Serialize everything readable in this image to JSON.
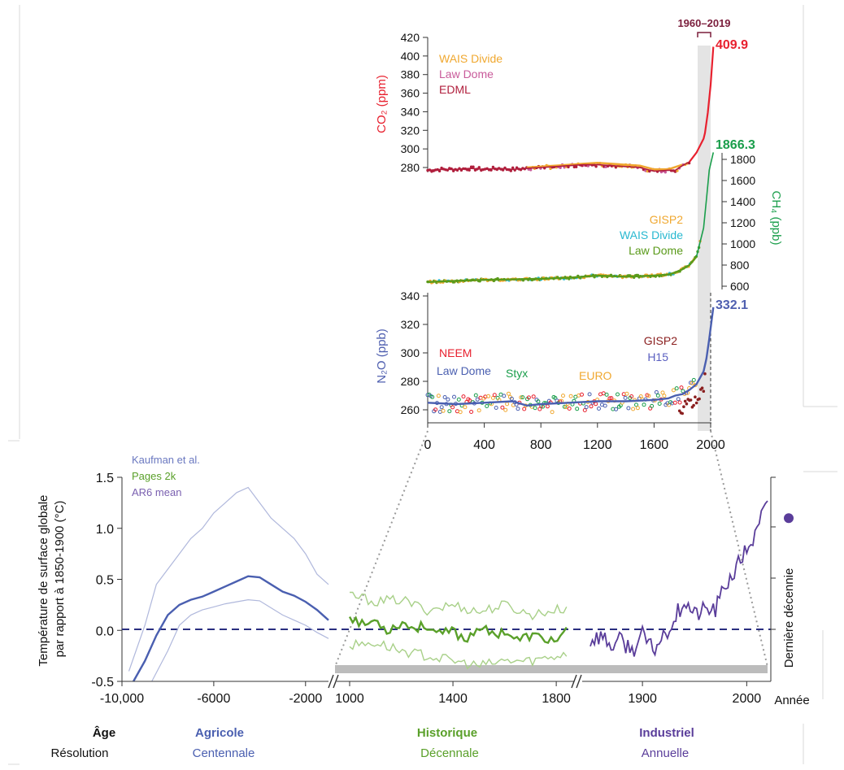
{
  "chart_data": [
    {
      "type": "line",
      "panel": "gas-concentrations",
      "bracket_label": "1960–2019",
      "x_ticks": [
        "0",
        "400",
        "800",
        "1200",
        "1600",
        "2000"
      ],
      "xlim": [
        0,
        2019
      ],
      "co2": {
        "ylabel": "CO₂ (ppm)",
        "ylim": [
          270,
          420
        ],
        "ticks": [
          "280",
          "300",
          "320",
          "340",
          "360",
          "380",
          "400",
          "420"
        ],
        "final_value_label": "409.9",
        "final_value": 409.9,
        "legend": [
          "WAIS Divide",
          "Law Dome",
          "EDML"
        ],
        "colors": {
          "accent": "#e8212f",
          "wais": "#f0a830",
          "lawdome": "#c85a9a",
          "edml": "#b01e3c"
        },
        "series": [
          {
            "name": "EDML",
            "x": [
              0,
              100,
              200,
              300,
              400,
              500,
              600,
              700,
              800,
              900,
              1000,
              1100,
              1200,
              1300,
              1400,
              1500,
              1600,
              1700,
              1750,
              1800,
              1850,
              1900,
              1950,
              1960,
              1980,
              2000,
              2019
            ],
            "y": [
              277,
              278,
              278,
              279,
              278,
              279,
              278,
              279,
              280,
              281,
              282,
              283,
              283,
              282,
              281,
              280,
              276,
              277,
              277,
              282,
              286,
              296,
              311,
              317,
              339,
              369,
              409.9
            ]
          },
          {
            "name": "WAIS Divide",
            "x": [
              700,
              800,
              900,
              1000,
              1100,
              1200,
              1300,
              1400,
              1500,
              1600,
              1700,
              1800
            ],
            "y": [
              280,
              281,
              282,
              283,
              284,
              285,
              284,
              283,
              282,
              278,
              278,
              283
            ]
          }
        ]
      },
      "ch4": {
        "ylabel": "CH₄ (ppb)",
        "ylim": [
          600,
          1900
        ],
        "ticks": [
          "600",
          "800",
          "1000",
          "1200",
          "1400",
          "1600",
          "1800"
        ],
        "final_value_label": "1866.3",
        "final_value": 1866.3,
        "legend": [
          "GISP2",
          "WAIS Divide",
          "Law Dome"
        ],
        "colors": {
          "accent": "#1a9e4b",
          "gisp2": "#f0a830",
          "wais": "#28b8d0",
          "lawdome": "#5a9a1a"
        },
        "series": [
          {
            "name": "Law Dome",
            "x": [
              0,
              200,
              400,
              600,
              800,
              1000,
              1200,
              1400,
              1600,
              1700,
              1750,
              1800,
              1850,
              1900,
              1950,
              1970,
              1990,
              2019
            ],
            "y": [
              640,
              650,
              660,
              665,
              670,
              680,
              700,
              690,
              700,
              710,
              730,
              760,
              800,
              880,
              1150,
              1420,
              1700,
              1866.3
            ]
          }
        ]
      },
      "n2o": {
        "ylabel": "N₂O (ppb)",
        "ylim": [
          255,
          340
        ],
        "ticks": [
          "260",
          "280",
          "300",
          "320",
          "340"
        ],
        "final_value_label": "332.1",
        "final_value": 332.1,
        "legend": [
          "NEEM",
          "Law Dome",
          "Styx",
          "EURO",
          "GISP2",
          "H15"
        ],
        "colors": {
          "accent": "#5060b0",
          "neem": "#e8212f",
          "lawdome": "#4a5fb0",
          "styx": "#1a9e4b",
          "euro": "#f0a830",
          "gisp2": "#8b2020",
          "h15": "#5a5fc0"
        },
        "series": [
          {
            "name": "Law Dome",
            "x": [
              0,
              200,
              400,
              600,
              700,
              800,
              1000,
              1200,
              1400,
              1600,
              1700,
              1750,
              1800,
              1850,
              1900,
              1950,
              1970,
              1990,
              2019
            ],
            "y": [
              265,
              264,
              265,
              266,
              263,
              264,
              265,
              266,
              266,
              267,
              268,
              270,
              271,
              274,
              278,
              287,
              296,
              310,
              332.1
            ]
          }
        ]
      }
    },
    {
      "type": "line",
      "panel": "global-temperature",
      "ylabel": "Température de surface globale par rapport à 1850-1900 (°C)",
      "ylim": [
        -0.5,
        1.5
      ],
      "y_ticks": [
        "-0.5",
        "0.0",
        "0.5",
        "1.0",
        "1.5"
      ],
      "legend": [
        "Kaufman et al.",
        "Pages 2k",
        "AR6 mean"
      ],
      "xlabel": "Année",
      "colors": {
        "agricole": "#4a5fb0",
        "agricole_light": "#b0b8dc",
        "historique": "#5aa02a",
        "historique_light": "#a8d088",
        "industriel": "#5a3d9a",
        "zero_line": "#2a2f80",
        "gray_bar": "#bcbcbc"
      },
      "segments": [
        {
          "name": "Agricole",
          "x_ticks": [
            "-10,000",
            "-6000",
            "-2000"
          ],
          "xlim": [
            -10000,
            -1000
          ],
          "series": [
            {
              "name": "Kaufman et al.",
              "x": [
                -9500,
                -9000,
                -8500,
                -8000,
                -7500,
                -7000,
                -6500,
                -6000,
                -5500,
                -5000,
                -4500,
                -4000,
                -3500,
                -3000,
                -2500,
                -2000,
                -1500,
                -1200,
                -1000
              ],
              "y": [
                -0.55,
                -0.3,
                -0.05,
                0.15,
                0.25,
                0.3,
                0.33,
                0.38,
                0.43,
                0.48,
                0.53,
                0.52,
                0.45,
                0.38,
                0.34,
                0.28,
                0.2,
                0.14,
                0.1
              ]
            },
            {
              "name": "Kaufman et al. (upper)",
              "x": [
                -9700,
                -9000,
                -8500,
                -8000,
                -7500,
                -7000,
                -6500,
                -6000,
                -5500,
                -5000,
                -4500,
                -4000,
                -3500,
                -3000,
                -2500,
                -2000,
                -1500,
                -1000
              ],
              "y": [
                -0.4,
                0.05,
                0.45,
                0.6,
                0.75,
                0.9,
                1.0,
                1.15,
                1.25,
                1.35,
                1.4,
                1.25,
                1.1,
                1.0,
                0.9,
                0.75,
                0.55,
                0.45
              ]
            },
            {
              "name": "Kaufman et al. (lower)",
              "x": [
                -8700,
                -8000,
                -7500,
                -7000,
                -6500,
                -6000,
                -5500,
                -5000,
                -4500,
                -4000,
                -3500,
                -3000,
                -2500,
                -2000,
                -1500,
                -1000
              ],
              "y": [
                -0.5,
                -0.2,
                0.05,
                0.15,
                0.2,
                0.23,
                0.26,
                0.28,
                0.3,
                0.29,
                0.22,
                0.15,
                0.1,
                0.05,
                -0.02,
                -0.08
              ]
            }
          ]
        },
        {
          "name": "Historique",
          "x_ticks": [
            "1000",
            "1400",
            "1800"
          ],
          "xlim": [
            1000,
            1850
          ],
          "series": [
            {
              "name": "Pages 2k",
              "x": [
                1000,
                1050,
                1100,
                1150,
                1200,
                1250,
                1300,
                1350,
                1400,
                1450,
                1500,
                1550,
                1600,
                1650,
                1700,
                1750,
                1800,
                1850
              ],
              "y": [
                0.15,
                0.05,
                0.1,
                0.0,
                0.08,
                0.02,
                0.05,
                -0.05,
                0.0,
                -0.1,
                0.05,
                -0.05,
                0.0,
                -0.1,
                -0.05,
                -0.08,
                -0.1,
                0.0
              ]
            },
            {
              "name": "Pages 2k (upper)",
              "x": [
                1000,
                1100,
                1200,
                1300,
                1400,
                1500,
                1600,
                1700,
                1800,
                1850
              ],
              "y": [
                0.35,
                0.28,
                0.3,
                0.2,
                0.25,
                0.18,
                0.25,
                0.15,
                0.2,
                0.22
              ]
            },
            {
              "name": "Pages 2k (lower)",
              "x": [
                1000,
                1100,
                1200,
                1300,
                1400,
                1500,
                1600,
                1700,
                1800,
                1850
              ],
              "y": [
                -0.15,
                -0.12,
                -0.2,
                -0.25,
                -0.3,
                -0.35,
                -0.3,
                -0.3,
                -0.25,
                -0.22
              ]
            }
          ]
        },
        {
          "name": "Industriel",
          "x_ticks": [
            "1900",
            "2000"
          ],
          "xlim": [
            1850,
            2020
          ],
          "series": [
            {
              "name": "AR6 mean",
              "x": [
                1850,
                1860,
                1870,
                1880,
                1890,
                1900,
                1910,
                1920,
                1930,
                1940,
                1950,
                1960,
                1970,
                1980,
                1990,
                2000,
                2010,
                2015,
                2020
              ],
              "y": [
                -0.1,
                -0.05,
                -0.15,
                -0.1,
                -0.2,
                -0.05,
                -0.2,
                -0.05,
                0.1,
                0.3,
                0.15,
                0.2,
                0.2,
                0.45,
                0.6,
                0.8,
                0.95,
                1.15,
                1.2
              ]
            }
          ]
        }
      ],
      "decade_marker": {
        "label": "Dernière décennie",
        "value": 1.1
      }
    }
  ],
  "bottom_labels": {
    "age": "Âge",
    "resolution": "Résolution",
    "agricole": "Agricole",
    "agricole_res": "Centennale",
    "historique": "Historique",
    "historique_res": "Décennale",
    "industriel": "Industriel",
    "industriel_res": "Annuelle"
  }
}
